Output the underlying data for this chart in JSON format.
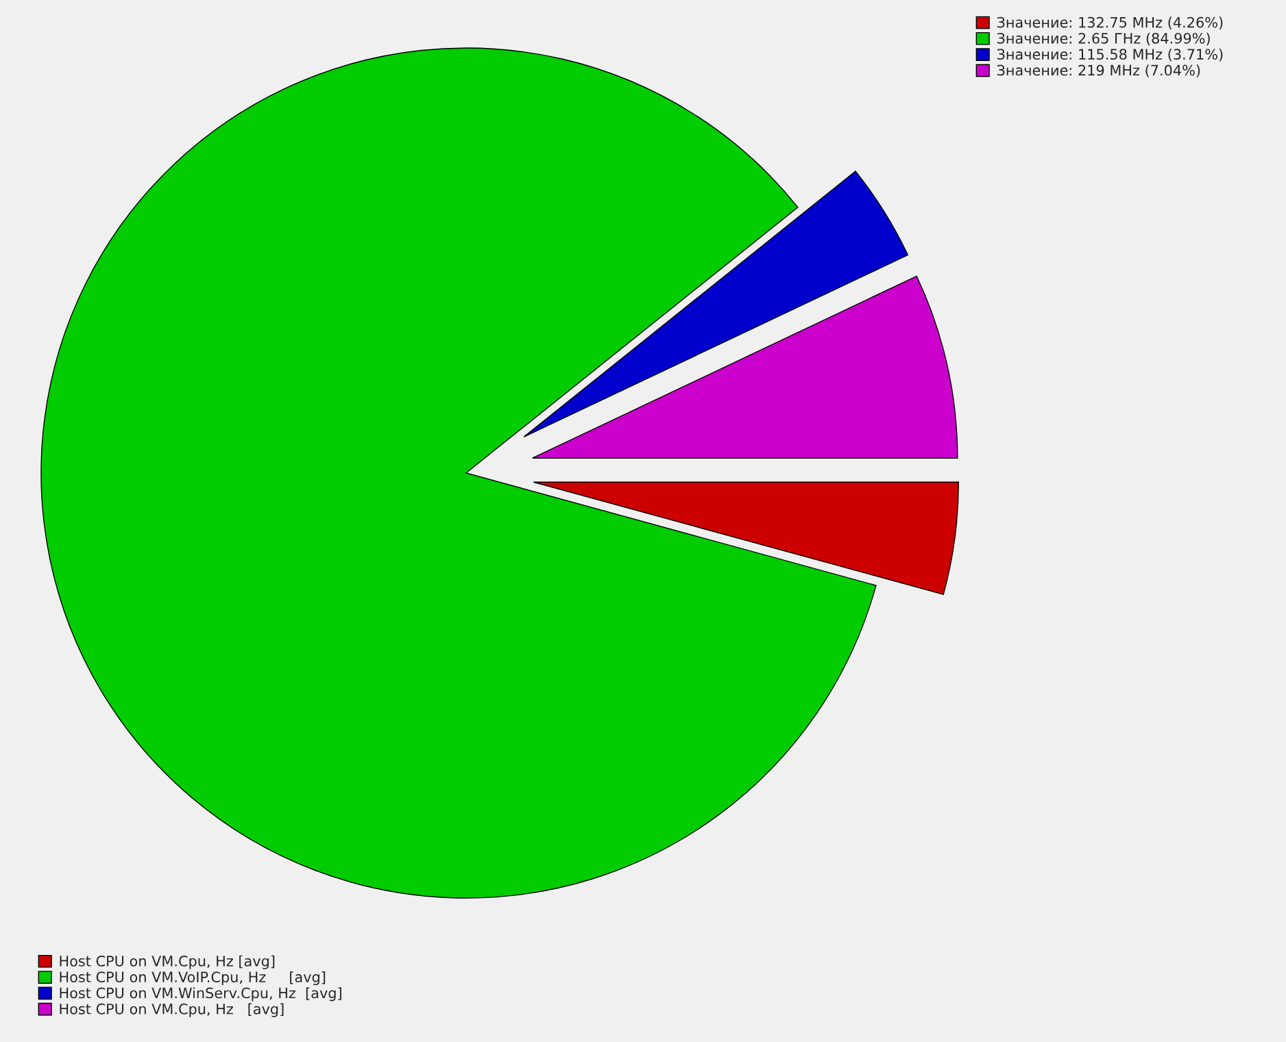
{
  "chart_data": {
    "type": "pie",
    "categories": [
      "Host CPU on VM.Cpu, Hz [avg]",
      "Host CPU on VM.VoIP.Cpu, Hz     [avg]",
      "Host CPU on VM.WinServ.Cpu, Hz  [avg]",
      "Host CPU on VM.Cpu, Hz   [avg]"
    ],
    "values": [
      4.26,
      84.99,
      3.71,
      7.04
    ],
    "annotations": [
      "Значение: 132.75 MHz (4.26%)",
      "Значение: 2.65 ГHz (84.99%)",
      "Значение: 115.58 MHz (3.71%)",
      "Значение: 219 MHz (7.04%)"
    ],
    "colors": [
      "#cc0000",
      "#00cc00",
      "#0000cc",
      "#cc00cc"
    ],
    "legend": "bottom left"
  }
}
